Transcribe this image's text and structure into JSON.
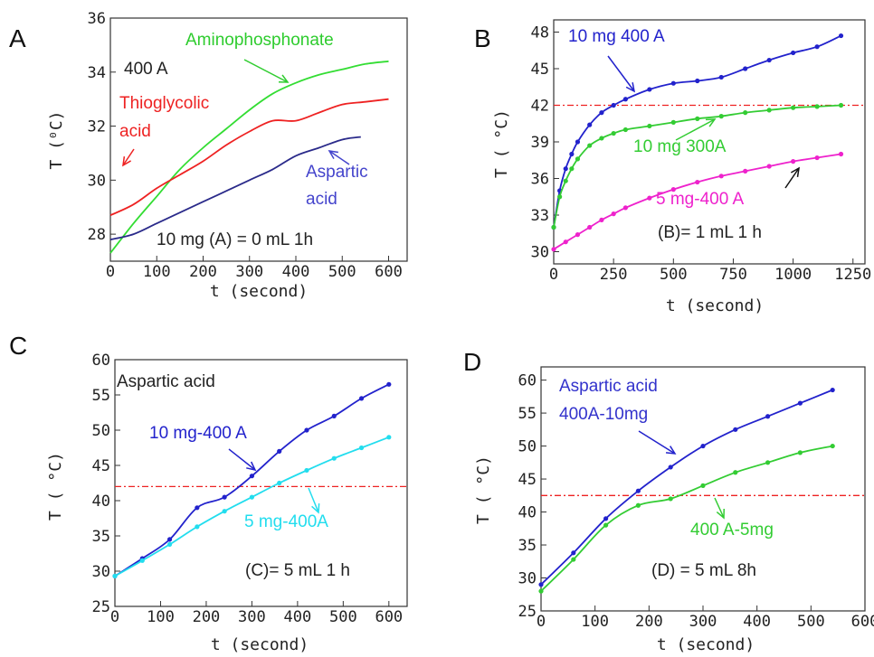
{
  "chart_data": [
    {
      "type": "line",
      "panel_letter": "A",
      "xlabel": "t (second)",
      "ylabel": "T (⁰C)",
      "xlim": [
        0,
        640
      ],
      "ylim": [
        27,
        36
      ],
      "xticks": [
        0,
        100,
        200,
        300,
        400,
        500,
        600
      ],
      "yticks": [
        28,
        30,
        32,
        34,
        36
      ],
      "series": [
        {
          "name": "Aminophosphonate",
          "color": "#33dd33",
          "markers": false,
          "x": [
            0,
            50,
            100,
            150,
            200,
            250,
            300,
            350,
            400,
            450,
            500,
            550,
            600
          ],
          "y": [
            27.3,
            28.4,
            29.4,
            30.4,
            31.2,
            31.9,
            32.6,
            33.2,
            33.6,
            33.9,
            34.1,
            34.3,
            34.4
          ]
        },
        {
          "name": "Thioglycolic acid",
          "color": "#ee2222",
          "markers": false,
          "x": [
            0,
            50,
            100,
            150,
            200,
            250,
            300,
            350,
            400,
            450,
            500,
            550,
            600
          ],
          "y": [
            28.7,
            29.1,
            29.7,
            30.2,
            30.7,
            31.3,
            31.8,
            32.2,
            32.2,
            32.5,
            32.8,
            32.9,
            33.0
          ]
        },
        {
          "name": "Aspartic acid",
          "color": "#2a2a8a",
          "markers": false,
          "x": [
            0,
            50,
            100,
            150,
            200,
            250,
            300,
            350,
            400,
            450,
            500,
            540
          ],
          "y": [
            27.8,
            28.0,
            28.4,
            28.8,
            29.2,
            29.6,
            30.0,
            30.4,
            30.9,
            31.2,
            31.5,
            31.6
          ]
        }
      ],
      "annotations": [
        {
          "id": "amino",
          "lines": [
            "Aminophosphonate"
          ],
          "color": "#2ecc2e"
        },
        {
          "id": "a400",
          "lines": [
            "400 A"
          ],
          "color": "#222222"
        },
        {
          "id": "thio",
          "lines": [
            "Thioglycolic",
            "acid"
          ],
          "color": "#ee2222"
        },
        {
          "id": "asp",
          "lines": [
            "Aspartic",
            "acid"
          ],
          "color": "#4444cc"
        },
        {
          "id": "mg",
          "lines": [
            "10 mg    (A) = 0 mL 1h"
          ],
          "color": "#222222"
        }
      ]
    },
    {
      "type": "line",
      "panel_letter": "B",
      "xlabel": "t (second)",
      "ylabel": "T ( °C)",
      "xlim": [
        0,
        1300
      ],
      "ylim": [
        29,
        49
      ],
      "xticks": [
        0,
        250,
        500,
        750,
        1000,
        1250
      ],
      "yticks": [
        30,
        33,
        36,
        39,
        42,
        45,
        48
      ],
      "reference_line": {
        "y": 42,
        "color": "#ee2222"
      },
      "series": [
        {
          "name": "10 mg 400 A",
          "color": "#2222cc",
          "markers": true,
          "x": [
            0,
            25,
            50,
            75,
            100,
            150,
            200,
            250,
            300,
            400,
            500,
            600,
            700,
            800,
            900,
            1000,
            1100,
            1200
          ],
          "y": [
            32.0,
            35.0,
            36.8,
            38.0,
            39.0,
            40.4,
            41.4,
            42.0,
            42.5,
            43.3,
            43.8,
            44.0,
            44.3,
            45.0,
            45.7,
            46.3,
            46.8,
            47.7
          ]
        },
        {
          "name": "10 mg 300A",
          "color": "#33cc33",
          "markers": true,
          "x": [
            0,
            25,
            50,
            75,
            100,
            150,
            200,
            250,
            300,
            400,
            500,
            600,
            700,
            800,
            900,
            1000,
            1100,
            1200
          ],
          "y": [
            32.0,
            34.5,
            35.8,
            36.8,
            37.6,
            38.7,
            39.3,
            39.7,
            40.0,
            40.3,
            40.6,
            40.9,
            41.1,
            41.4,
            41.6,
            41.8,
            41.9,
            42.0
          ]
        },
        {
          "name": "5 mg-400 A",
          "color": "#ee22cc",
          "markers": true,
          "x": [
            0,
            50,
            100,
            150,
            200,
            250,
            300,
            400,
            500,
            600,
            700,
            800,
            900,
            1000,
            1100,
            1200
          ],
          "y": [
            30.2,
            30.8,
            31.4,
            32.0,
            32.6,
            33.1,
            33.6,
            34.4,
            35.1,
            35.7,
            36.2,
            36.6,
            37.0,
            37.4,
            37.7,
            38.0
          ]
        }
      ],
      "annotations": [
        {
          "id": "b1",
          "lines": [
            "10 mg 400 A"
          ],
          "color": "#2222cc"
        },
        {
          "id": "b2",
          "lines": [
            "10 mg 300A"
          ],
          "color": "#33cc33"
        },
        {
          "id": "b3",
          "lines": [
            "5 mg-400 A"
          ],
          "color": "#ee22cc"
        },
        {
          "id": "b4",
          "lines": [
            "(B)= 1 mL 1 h"
          ],
          "color": "#222222"
        }
      ]
    },
    {
      "type": "line",
      "panel_letter": "C",
      "xlabel": "t (second)",
      "ylabel": "T ( °C)",
      "xlim": [
        0,
        640
      ],
      "ylim": [
        25,
        60
      ],
      "xticks": [
        0,
        100,
        200,
        300,
        400,
        500,
        600
      ],
      "yticks": [
        25,
        30,
        35,
        40,
        45,
        50,
        55,
        60
      ],
      "reference_line": {
        "y": 42,
        "color": "#ee2222"
      },
      "series": [
        {
          "name": "10 mg-400 A",
          "color": "#2222cc",
          "markers": true,
          "x": [
            0,
            60,
            120,
            180,
            240,
            300,
            360,
            420,
            480,
            540,
            600
          ],
          "y": [
            29.3,
            31.8,
            34.5,
            39.0,
            40.5,
            43.5,
            47.0,
            50.0,
            52.0,
            54.5,
            56.5
          ]
        },
        {
          "name": "5 mg-400A",
          "color": "#22ddee",
          "markers": true,
          "x": [
            0,
            60,
            120,
            180,
            240,
            300,
            360,
            420,
            480,
            540,
            600
          ],
          "y": [
            29.3,
            31.5,
            33.8,
            36.3,
            38.5,
            40.5,
            42.5,
            44.3,
            46.0,
            47.5,
            49.0
          ]
        }
      ],
      "annotations": [
        {
          "id": "c0",
          "lines": [
            "Aspartic acid"
          ],
          "color": "#222222"
        },
        {
          "id": "c1",
          "lines": [
            "10 mg-400 A"
          ],
          "color": "#2222cc"
        },
        {
          "id": "c2",
          "lines": [
            "5 mg-400A"
          ],
          "color": "#22ddee"
        },
        {
          "id": "c3",
          "lines": [
            "(C)= 5 mL 1 h"
          ],
          "color": "#222222"
        }
      ]
    },
    {
      "type": "line",
      "panel_letter": "D",
      "xlabel": "t (second)",
      "ylabel": "T ( °C)",
      "xlim": [
        0,
        600
      ],
      "ylim": [
        25,
        62
      ],
      "xticks": [
        0,
        100,
        200,
        300,
        400,
        500,
        600
      ],
      "yticks": [
        25,
        30,
        35,
        40,
        45,
        50,
        55,
        60
      ],
      "reference_line": {
        "y": 42.5,
        "color": "#ee2222"
      },
      "series": [
        {
          "name": "400A-10mg",
          "color": "#2222cc",
          "markers": true,
          "x": [
            0,
            60,
            120,
            180,
            240,
            300,
            360,
            420,
            480,
            540
          ],
          "y": [
            29.0,
            33.8,
            39.0,
            43.2,
            46.8,
            50.0,
            52.5,
            54.5,
            56.5,
            58.5
          ]
        },
        {
          "name": "400 A-5mg",
          "color": "#33cc33",
          "markers": true,
          "x": [
            0,
            60,
            120,
            180,
            240,
            300,
            360,
            420,
            480,
            540
          ],
          "y": [
            28.0,
            32.8,
            38.0,
            41.0,
            42.0,
            44.0,
            46.0,
            47.5,
            49.0,
            50.0
          ]
        }
      ],
      "annotations": [
        {
          "id": "d0",
          "lines": [
            "Aspartic acid",
            "400A-10mg"
          ],
          "color": "#3333cc"
        },
        {
          "id": "d1",
          "lines": [
            "400 A-5mg"
          ],
          "color": "#33cc33"
        },
        {
          "id": "d2",
          "lines": [
            "(D) = 5 mL 8h"
          ],
          "color": "#222222"
        }
      ]
    }
  ]
}
